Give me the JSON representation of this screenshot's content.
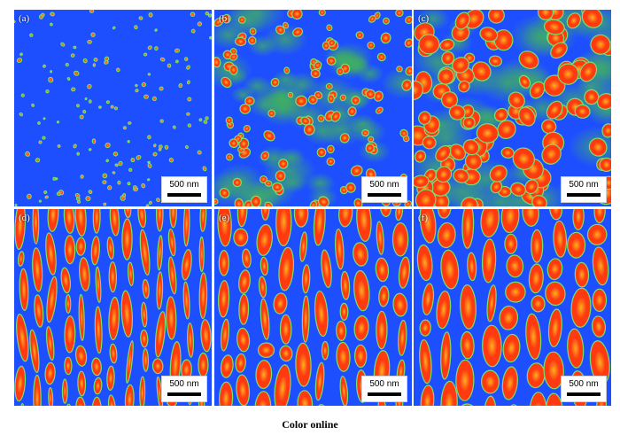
{
  "figure": {
    "panels": [
      {
        "label": "(a)",
        "scale_bar": "500 nm"
      },
      {
        "label": "(b)",
        "scale_bar": "500 nm"
      },
      {
        "label": "(c)",
        "scale_bar": "500 nm"
      },
      {
        "label": "(d)",
        "scale_bar": "500 nm"
      },
      {
        "label": "(e)",
        "scale_bar": "500 nm"
      },
      {
        "label": "(f)",
        "scale_bar": "500 nm"
      }
    ],
    "caption": "Color online"
  },
  "colors": {
    "matrix": "#1e4fff",
    "grain": "#ff3a10",
    "grain_core": "#ffb020",
    "boundary": "#79e070"
  }
}
